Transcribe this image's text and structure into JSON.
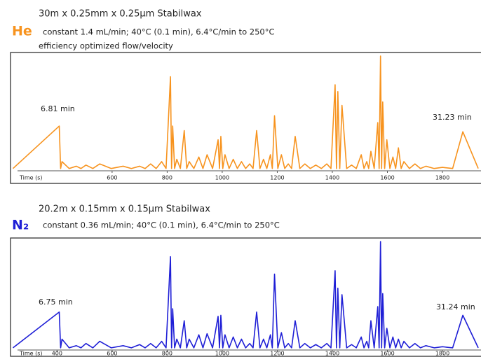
{
  "chart_data": [
    {
      "type": "line",
      "title": "30m x 0.25mm x 0.25µm Stabilwax",
      "gas": "He",
      "conditions": "constant 1.4 mL/min;   40°C (0.1 min), 6.4°C/min to 250°C",
      "note": "efficiency optimized flow/velocity",
      "annotations": [
        "6.81 min",
        "31.23 min"
      ],
      "x_label": "Time (s)",
      "color": "#f7931e",
      "xlim": [
        231,
        1940
      ],
      "ylim": [
        0,
        100
      ],
      "xticks": [
        600,
        800,
        1000,
        1200,
        1400,
        1600,
        1800
      ],
      "x": [
        240,
        408,
        413,
        418,
        444,
        470,
        487,
        505,
        530,
        555,
        597,
        640,
        670,
        700,
        720,
        740,
        760,
        780,
        796,
        812,
        816,
        820,
        827,
        835,
        848,
        862,
        871,
        880,
        897,
        915,
        930,
        945,
        965,
        985,
        990,
        995,
        1002,
        1010,
        1025,
        1040,
        1055,
        1070,
        1085,
        1100,
        1112,
        1125,
        1137,
        1150,
        1162,
        1175,
        1182,
        1190,
        1202,
        1215,
        1227,
        1240,
        1252,
        1265,
        1282,
        1300,
        1320,
        1340,
        1360,
        1380,
        1395,
        1410,
        1415,
        1420,
        1427,
        1435,
        1452,
        1470,
        1487,
        1505,
        1515,
        1525,
        1532,
        1540,
        1552,
        1565,
        1570,
        1575,
        1579,
        1583,
        1590,
        1598,
        1609,
        1620,
        1630,
        1640,
        1650,
        1660,
        1680,
        1700,
        1720,
        1740,
        1770,
        1800,
        1837,
        1874,
        1930
      ],
      "values": [
        2,
        39,
        2,
        8,
        2,
        4,
        2,
        5,
        2,
        6,
        2,
        4,
        2,
        4,
        2,
        6,
        2,
        8,
        2,
        82,
        2,
        39,
        2,
        10,
        2,
        35,
        2,
        8,
        2,
        12,
        2,
        14,
        2,
        27,
        2,
        30,
        2,
        14,
        2,
        10,
        2,
        8,
        2,
        6,
        2,
        35,
        2,
        10,
        2,
        14,
        2,
        48,
        2,
        14,
        2,
        6,
        2,
        30,
        2,
        6,
        2,
        5,
        2,
        6,
        2,
        75,
        2,
        69,
        2,
        57,
        2,
        5,
        2,
        14,
        2,
        8,
        2,
        17,
        2,
        42,
        2,
        100,
        2,
        60,
        2,
        27,
        2,
        12,
        2,
        20,
        2,
        8,
        2,
        6,
        2,
        4,
        2,
        3,
        2,
        34,
        2
      ]
    },
    {
      "type": "line",
      "title": "20.2m x 0.15mm x 0.15µm Stabilwax",
      "gas": "N₂",
      "conditions": "constant 0.36 mL/min;   40°C (0.1 min), 6.4°C/min to 250°C",
      "annotations": [
        "6.75 min",
        "31.24 min"
      ],
      "x_label": "Time (s)",
      "color": "#1f1fd6",
      "xlim": [
        231,
        1940
      ],
      "ylim": [
        0,
        100
      ],
      "xticks": [
        400,
        600,
        800,
        1000,
        1200,
        1400,
        1600,
        1800
      ],
      "x": [
        240,
        408,
        413,
        418,
        444,
        470,
        487,
        505,
        530,
        555,
        597,
        640,
        670,
        700,
        720,
        740,
        760,
        780,
        796,
        812,
        816,
        820,
        827,
        835,
        848,
        862,
        871,
        880,
        897,
        915,
        930,
        945,
        965,
        985,
        990,
        995,
        1002,
        1010,
        1025,
        1040,
        1055,
        1070,
        1085,
        1100,
        1112,
        1125,
        1137,
        1150,
        1162,
        1175,
        1182,
        1190,
        1202,
        1215,
        1227,
        1240,
        1252,
        1265,
        1282,
        1300,
        1320,
        1340,
        1360,
        1380,
        1395,
        1410,
        1415,
        1420,
        1427,
        1435,
        1452,
        1470,
        1487,
        1505,
        1515,
        1525,
        1532,
        1540,
        1552,
        1565,
        1570,
        1575,
        1579,
        1583,
        1590,
        1598,
        1609,
        1620,
        1630,
        1640,
        1650,
        1660,
        1680,
        1700,
        1720,
        1740,
        1770,
        1800,
        1837,
        1874,
        1930
      ],
      "values": [
        2,
        35,
        2,
        10,
        2,
        4,
        2,
        6,
        2,
        8,
        2,
        4,
        2,
        5,
        2,
        6,
        2,
        8,
        2,
        86,
        2,
        38,
        2,
        10,
        2,
        27,
        2,
        10,
        2,
        14,
        2,
        15,
        2,
        31,
        2,
        32,
        2,
        14,
        2,
        12,
        2,
        10,
        2,
        6,
        2,
        35,
        2,
        10,
        2,
        14,
        2,
        70,
        2,
        16,
        2,
        6,
        2,
        27,
        2,
        6,
        2,
        5,
        2,
        6,
        2,
        73,
        2,
        57,
        2,
        51,
        2,
        5,
        2,
        12,
        2,
        8,
        2,
        27,
        2,
        40,
        2,
        100,
        2,
        52,
        2,
        20,
        2,
        12,
        2,
        10,
        2,
        8,
        2,
        6,
        2,
        4,
        2,
        3,
        2,
        32,
        2
      ]
    }
  ]
}
